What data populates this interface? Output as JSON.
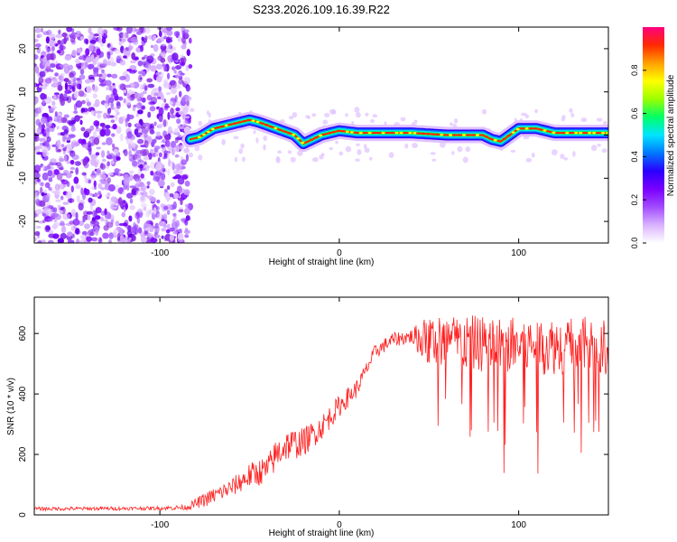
{
  "figure_title": "S233.2026.109.16.39.R22",
  "chart_data": [
    {
      "type": "heatmap",
      "title": "S233.2026.109.16.39.R22",
      "xlabel": "Height of straight line (km)",
      "ylabel": "Frequency (Hz)",
      "xlim": [
        -170,
        150
      ],
      "ylim": [
        -25,
        25
      ],
      "xticks": [
        -100,
        0,
        100
      ],
      "yticks": [
        -20,
        -10,
        0,
        10,
        20
      ],
      "colorbar": {
        "label": "Normalized spectral amplitude",
        "range": [
          0,
          1
        ],
        "ticks": [
          0.0,
          0.2,
          0.4,
          0.6,
          0.8
        ],
        "colors": [
          "#ffffff",
          "#d9b3ff",
          "#a24bff",
          "#7a00ff",
          "#2a00ff",
          "#0078ff",
          "#00e5ff",
          "#00ff66",
          "#9bff00",
          "#ffff00",
          "#ffa000",
          "#ff2a00",
          "#ff0080"
        ]
      },
      "noise_region": {
        "x_from": -170,
        "x_to": -83,
        "freq_from": -25,
        "freq_to": 25
      },
      "signal_ridge": {
        "x": [
          -83,
          -78,
          -70,
          -60,
          -50,
          -45,
          -35,
          -25,
          -20,
          -10,
          0,
          10,
          20,
          40,
          60,
          80,
          85,
          90,
          95,
          100,
          110,
          120,
          150
        ],
        "freq": [
          -1,
          -0.5,
          1.5,
          2.5,
          3.5,
          3,
          1.5,
          0,
          -2,
          0,
          1,
          0.5,
          0.5,
          0.5,
          0,
          0,
          -1,
          -1.5,
          0,
          1.5,
          1.5,
          0.5,
          0.5
        ]
      }
    },
    {
      "type": "line",
      "xlabel": "Height of straight line (km)",
      "ylabel": "SNR (10 * v/v)",
      "xlim": [
        -170,
        150
      ],
      "ylim": [
        0,
        720
      ],
      "xticks": [
        -100,
        0,
        100
      ],
      "yticks": [
        0,
        200,
        400,
        600
      ],
      "series": [
        {
          "name": "SNR",
          "color": "#ff2020",
          "envelope_x": [
            -170,
            -100,
            -85,
            -75,
            -60,
            -50,
            -40,
            -35,
            -30,
            -20,
            -10,
            0,
            10,
            15,
            20,
            30,
            40,
            50,
            100,
            150
          ],
          "envelope_mean": [
            20,
            22,
            25,
            50,
            90,
            130,
            150,
            200,
            230,
            240,
            290,
            360,
            420,
            480,
            540,
            580,
            590,
            575,
            560,
            560
          ],
          "envelope_spread": [
            10,
            10,
            15,
            40,
            50,
            70,
            80,
            90,
            90,
            80,
            70,
            60,
            50,
            40,
            40,
            40,
            40,
            150,
            160,
            160
          ]
        }
      ]
    }
  ]
}
